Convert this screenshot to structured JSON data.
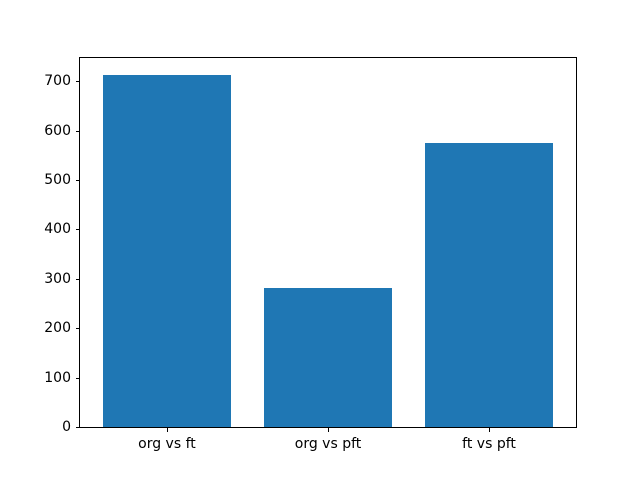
{
  "chart_data": {
    "type": "bar",
    "title": "",
    "xlabel": "",
    "ylabel": "",
    "categories": [
      "org vs ft",
      "org vs pft",
      "ft vs pft"
    ],
    "values": [
      712,
      281,
      575
    ],
    "bar_color": "#1f77b4",
    "bar_width_fraction": 0.8,
    "xlim": [
      -0.54,
      2.54
    ],
    "ylim": [
      0,
      747.6
    ],
    "yticks": [
      0,
      100,
      200,
      300,
      400,
      500,
      600,
      700
    ],
    "grid": false,
    "legend": "none",
    "background": "#ffffff",
    "spine_color": "#000000",
    "text_color": "#000000"
  }
}
